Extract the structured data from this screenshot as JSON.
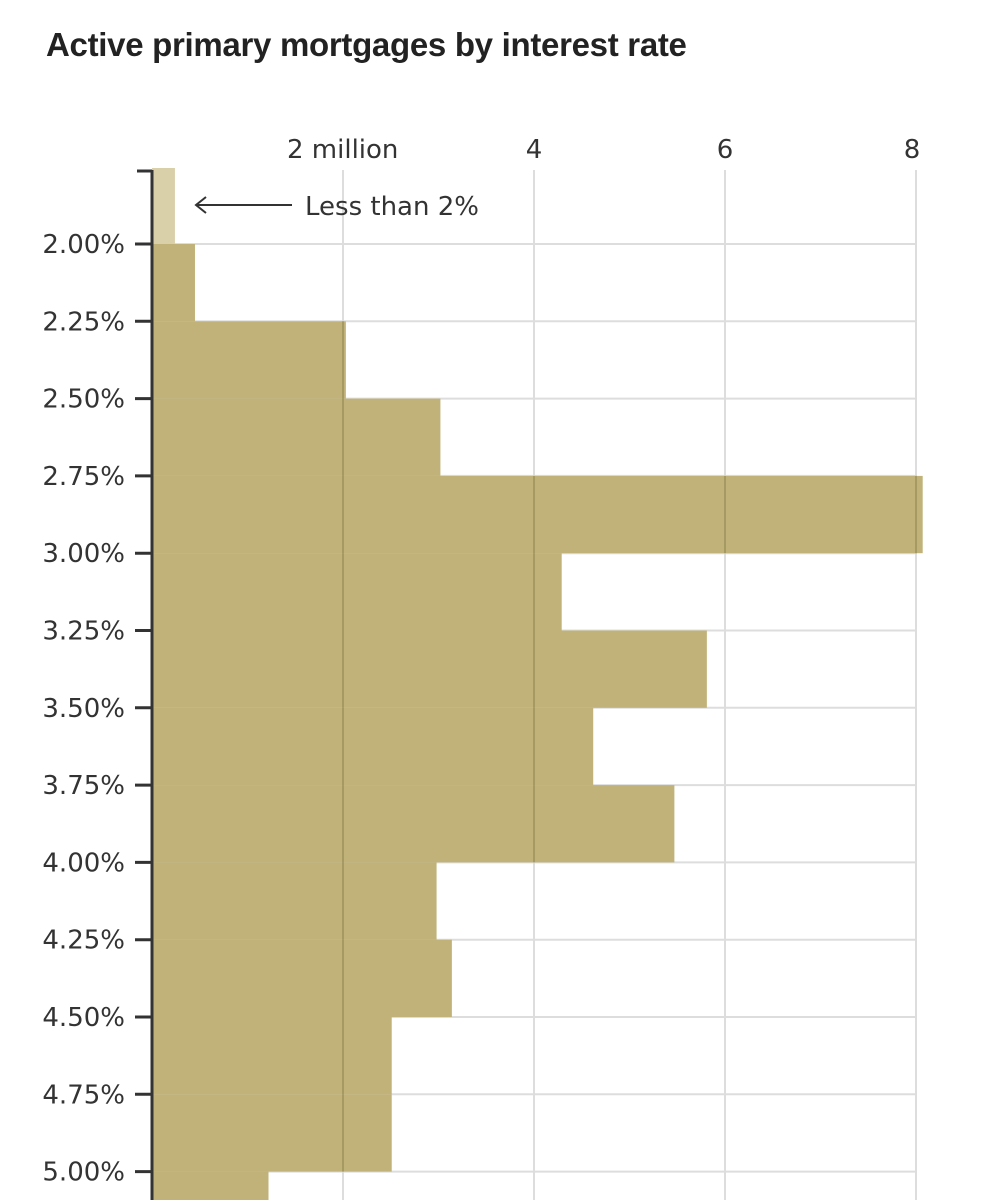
{
  "chart_data": {
    "type": "bar",
    "orientation": "horizontal-histogram",
    "title": "Active primary mortgages by interest rate",
    "x_tick_labels": [
      "2 million",
      "4",
      "6",
      "8"
    ],
    "x_ticks": [
      2,
      4,
      6,
      8
    ],
    "xlim": [
      0,
      8
    ],
    "x_unit": "millions of mortgages",
    "grid": true,
    "bins": [
      {
        "label": "Less than 2%",
        "value": 0.24,
        "highlight": true
      },
      {
        "label": "2.00%",
        "value": 0.45
      },
      {
        "label": "2.25%",
        "value": 2.03
      },
      {
        "label": "2.50%",
        "value": 3.02
      },
      {
        "label": "2.75%",
        "value": 8.07
      },
      {
        "label": "3.00%",
        "value": 4.29
      },
      {
        "label": "3.25%",
        "value": 5.81
      },
      {
        "label": "3.50%",
        "value": 4.62
      },
      {
        "label": "3.75%",
        "value": 5.47
      },
      {
        "label": "4.00%",
        "value": 2.98
      },
      {
        "label": "4.25%",
        "value": 3.14
      },
      {
        "label": "4.50%",
        "value": 2.51
      },
      {
        "label": "4.75%",
        "value": 2.51
      },
      {
        "label": "5.00%",
        "value": 1.22
      }
    ],
    "y_tick_labels": [
      "2.00%",
      "2.25%",
      "2.50%",
      "2.75%",
      "3.00%",
      "3.25%",
      "3.50%",
      "3.75%",
      "4.00%",
      "4.25%",
      "4.50%",
      "4.75%",
      "5.00%"
    ],
    "annotation": "Less than 2%",
    "colors": {
      "bar": "#c0b278",
      "highlight_bar": "#d9cfa9",
      "grid": "#dddddd",
      "axis": "#333333"
    }
  }
}
